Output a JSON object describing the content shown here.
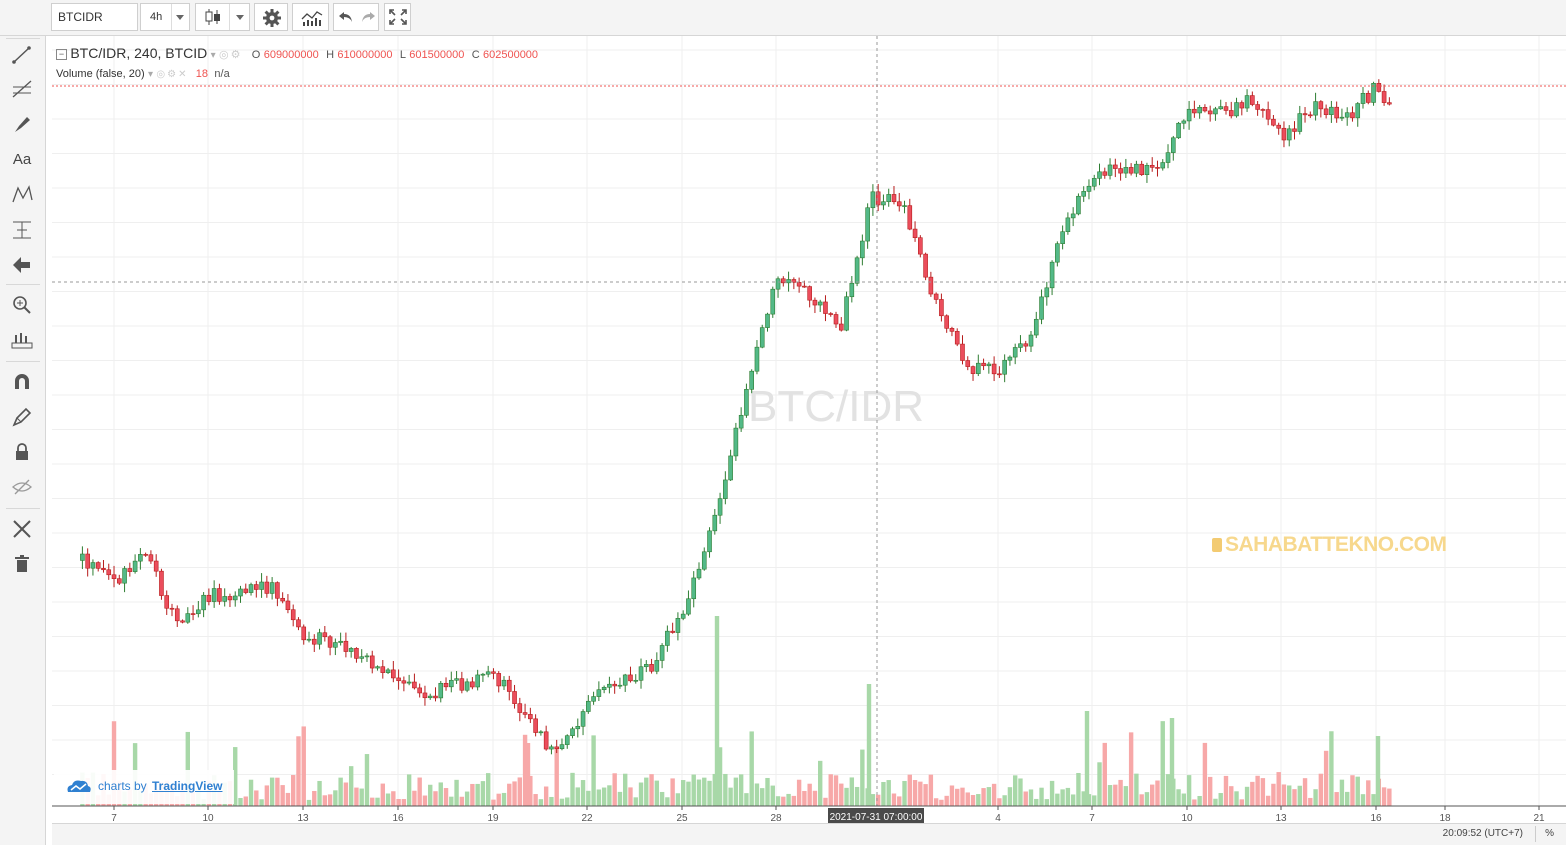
{
  "toolbar": {
    "symbol": "BTCIDR",
    "interval": "4h"
  },
  "legend": {
    "title": "BTC/IDR, 240, BTCID",
    "o_label": "O",
    "o_value": "609000000",
    "h_label": "H",
    "h_value": "610000000",
    "l_label": "L",
    "l_value": "601500000",
    "c_label": "C",
    "c_value": "602500000",
    "volume_title": "Volume (false, 20)",
    "volume_value": "18",
    "volume_ma": "n/a"
  },
  "watermark": "BTC/IDR",
  "logo_text": "SAHABATTEKNO.COM",
  "branding": {
    "prefix": "charts by",
    "name": "TradingView"
  },
  "crosshair_label": "2021-07-31 07:00:00",
  "status": {
    "time": "20:09:52 (UTC+7)",
    "percent": "%"
  },
  "colors": {
    "up": "#26a69a",
    "up_fill": "#53b987",
    "down": "#ef5350",
    "down_fill": "#eb4d5c",
    "vol_up": "#a8d8a8",
    "vol_down": "#f7a8a8"
  },
  "chart_data": {
    "type": "candlestick",
    "xlabel": "",
    "ylabel": "",
    "x_ticks": [
      "7",
      "10",
      "13",
      "16",
      "19",
      "22",
      "25",
      "28",
      "4",
      "7",
      "10",
      "13",
      "16",
      "18",
      "21"
    ],
    "grid": true,
    "series": [
      {
        "name": "BTC/IDR",
        "trend_waypoints": [
          {
            "day": "6",
            "close": 430000000
          },
          {
            "day": "7",
            "close": 422000000
          },
          {
            "day": "8",
            "close": 432000000
          },
          {
            "day": "9",
            "close": 406000000
          },
          {
            "day": "10",
            "close": 416000000
          },
          {
            "day": "12",
            "close": 420000000
          },
          {
            "day": "13",
            "close": 402000000
          },
          {
            "day": "15",
            "close": 392000000
          },
          {
            "day": "17",
            "close": 379000000
          },
          {
            "day": "19",
            "close": 386000000
          },
          {
            "day": "20",
            "close": 372000000
          },
          {
            "day": "21",
            "close": 355000000
          },
          {
            "day": "22",
            "close": 376000000
          },
          {
            "day": "24",
            "close": 390000000
          },
          {
            "day": "25",
            "close": 412000000
          },
          {
            "day": "26",
            "close": 445000000
          },
          {
            "day": "27",
            "close": 495000000
          },
          {
            "day": "28",
            "close": 538000000
          },
          {
            "day": "29",
            "close": 532000000
          },
          {
            "day": "30",
            "close": 520000000
          },
          {
            "day": "31",
            "close": 570000000
          },
          {
            "day": "1",
            "close": 565000000
          },
          {
            "day": "2",
            "close": 530000000
          },
          {
            "day": "3",
            "close": 505000000
          },
          {
            "day": "4",
            "close": 502000000
          },
          {
            "day": "5",
            "close": 515000000
          },
          {
            "day": "6",
            "close": 558000000
          },
          {
            "day": "7",
            "close": 575000000
          },
          {
            "day": "8",
            "close": 582000000
          },
          {
            "day": "9",
            "close": 580000000
          },
          {
            "day": "10",
            "close": 605000000
          },
          {
            "day": "11",
            "close": 601000000
          },
          {
            "day": "12",
            "close": 608000000
          },
          {
            "day": "13",
            "close": 592000000
          },
          {
            "day": "14",
            "close": 605000000
          },
          {
            "day": "15",
            "close": 600000000
          },
          {
            "day": "16",
            "close": 612000000
          },
          {
            "day": "16.5",
            "close": 602500000
          }
        ]
      }
    ]
  }
}
